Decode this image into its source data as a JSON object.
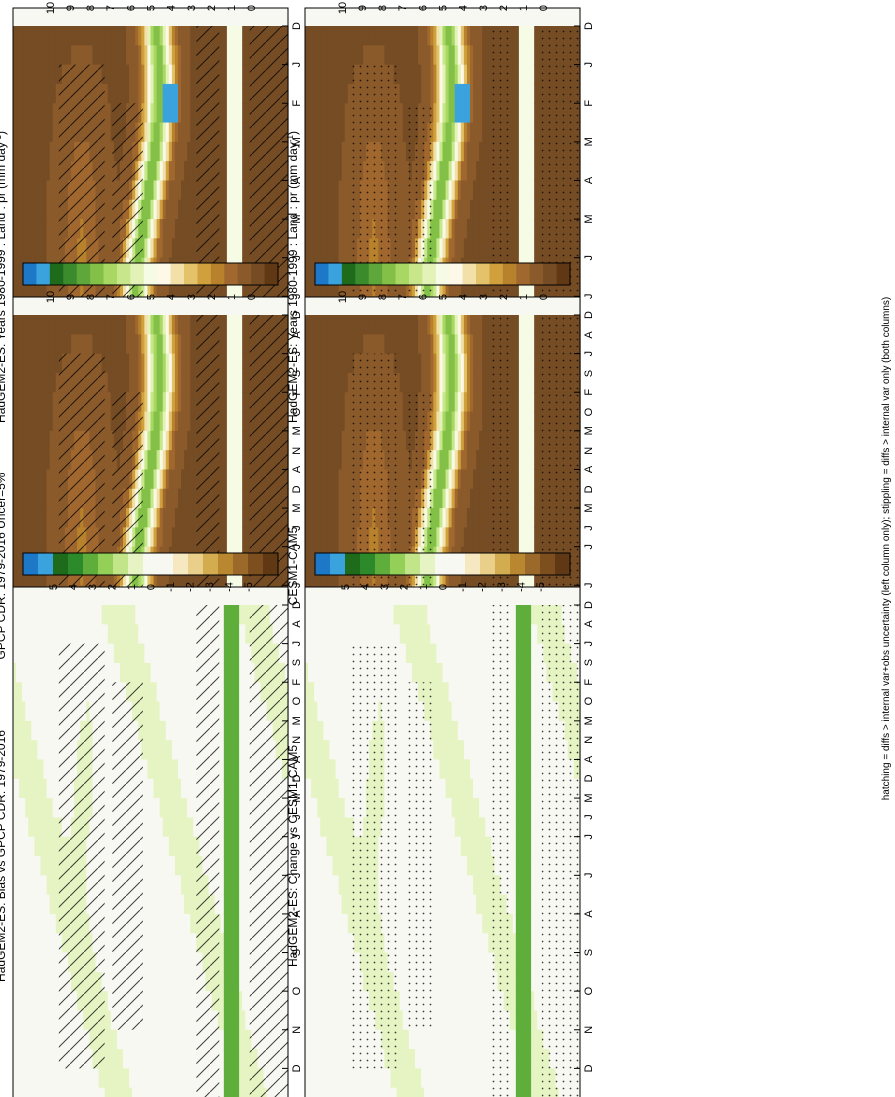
{
  "footnote": "hatching = diffs > internal var+obs uncertainty (left column only); stippling = diffs > internal var only (both columns)",
  "palettes": {
    "precip": [
      "#603813",
      "#754c24",
      "#8b5a2b",
      "#a0672e",
      "#b8822d",
      "#cfa03c",
      "#e3c26a",
      "#f3e0a8",
      "#fdf8e8",
      "#f6fbe6",
      "#e3f3b8",
      "#c8e78a",
      "#a9d763",
      "#83c047",
      "#5ea83b",
      "#3b8a2c",
      "#1f6b1c",
      "#3aa3dd",
      "#1e78c8"
    ],
    "diff": [
      "#603813",
      "#7d4f1f",
      "#9b6a2a",
      "#b8872f",
      "#d4ac50",
      "#e9cf8a",
      "#f6e9c2",
      "#f8f8f3",
      "#f8f8f3",
      "#e5f4c2",
      "#c2e58a",
      "#94cf58",
      "#5fae3b",
      "#2d8a2a",
      "#1e6b1c",
      "#3aa3dd",
      "#1e78c8"
    ]
  },
  "panels": [
    {
      "title": "HadGEM2-ES: Years 1980-1999 : Land : pr (mm day",
      "title_sup": "-1",
      "title_tail": ")",
      "kind": "precip",
      "overlay": "hatch",
      "colorbar_ticks": [
        "10",
        "9",
        "8",
        "7",
        "6",
        "5",
        "4",
        "3",
        "2",
        "1",
        "0"
      ]
    },
    {
      "title": "HadGEM2-ES: Years 1980-1999 : Land : pr (mm day",
      "title_sup": "-1",
      "title_tail": ")",
      "kind": "precip",
      "overlay": "stipple",
      "colorbar_ticks": [
        "10",
        "9",
        "8",
        "7",
        "6",
        "5",
        "4",
        "3",
        "2",
        "1",
        "0"
      ]
    },
    {
      "title": "GPCP CDR: 1979-2016 Uncer=5%",
      "kind": "precip",
      "overlay": "hatch",
      "colorbar_ticks": [
        "10",
        "9",
        "8",
        "7",
        "6",
        "5",
        "4",
        "3",
        "2",
        "1",
        "0"
      ]
    },
    {
      "title": "CESM1-CAM5",
      "kind": "precip",
      "overlay": "stipple",
      "colorbar_ticks": [
        "10",
        "9",
        "8",
        "7",
        "6",
        "5",
        "4",
        "3",
        "2",
        "1",
        "0"
      ]
    },
    {
      "title": "HadGEM2-ES: Bias vs GPCP CDR: 1979-2016",
      "kind": "diff",
      "overlay": "hatch",
      "colorbar_ticks": [
        "5",
        "4",
        "3",
        "2",
        "1",
        "0",
        "-1",
        "-2",
        "-3",
        "-4",
        "-5"
      ]
    },
    {
      "title": "HadGEM2-ES: Change vs CESM1-CAM5",
      "kind": "diff",
      "overlay": "stipple",
      "colorbar_ticks": [
        "5",
        "4",
        "3",
        "2",
        "1",
        "0",
        "-1",
        "-2",
        "-3",
        "-4",
        "-5"
      ]
    }
  ],
  "chart_data": {
    "type": "heatmap",
    "x_axis": {
      "ticks": [
        "D",
        "J",
        "F",
        "M",
        "A",
        "M",
        "J",
        "J",
        "A",
        "S",
        "O",
        "N",
        "D",
        "J"
      ]
    },
    "y_axis": {
      "tick_values": [
        80,
        60,
        40,
        20,
        0,
        -20,
        -40,
        -60,
        -80
      ],
      "tick_labels": [
        "80",
        "60",
        "°N",
        "20",
        "0",
        "20",
        "°S",
        "60",
        "80"
      ],
      "range": [
        90,
        -90
      ]
    },
    "colorbar_precip": {
      "range": [
        0,
        10
      ],
      "units": "mm day-1"
    },
    "colorbar_diff": {
      "range": [
        -5,
        5
      ],
      "units": "mm day-1"
    }
  }
}
